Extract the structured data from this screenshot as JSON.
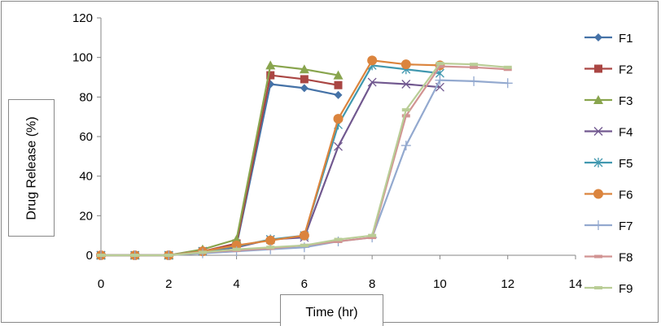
{
  "chart_data": {
    "type": "line",
    "xlabel": "Time (hr)",
    "ylabel": "Drug Release (%)",
    "xlim": [
      0,
      14
    ],
    "ylim": [
      0,
      120
    ],
    "xticks": [
      0,
      2,
      4,
      6,
      8,
      10,
      12,
      14
    ],
    "yticks": [
      0,
      20,
      40,
      60,
      80,
      100,
      120
    ],
    "grid": false,
    "legend": "right",
    "series": [
      {
        "name": "F1",
        "color": "#4572a7",
        "marker": "diamond",
        "x": [
          0,
          1,
          2,
          3,
          4,
          5,
          6,
          7
        ],
        "y": [
          0,
          0,
          0,
          2,
          5,
          86.5,
          84.5,
          81
        ]
      },
      {
        "name": "F2",
        "color": "#aa4643",
        "marker": "square",
        "x": [
          0,
          1,
          2,
          3,
          4,
          5,
          6,
          7
        ],
        "y": [
          0,
          0,
          0,
          2,
          6,
          91,
          89,
          86
        ]
      },
      {
        "name": "F3",
        "color": "#89a54e",
        "marker": "triangle",
        "x": [
          0,
          1,
          2,
          3,
          4,
          5,
          6,
          7
        ],
        "y": [
          0,
          0,
          0,
          3,
          8,
          96,
          94,
          91
        ]
      },
      {
        "name": "F4",
        "color": "#71588f",
        "marker": "x",
        "x": [
          0,
          1,
          2,
          3,
          4,
          5,
          6,
          7,
          8,
          9,
          10
        ],
        "y": [
          0,
          0,
          0,
          2,
          4,
          8,
          9,
          55,
          87.5,
          86.5,
          85
        ]
      },
      {
        "name": "F5",
        "color": "#4198af",
        "marker": "star",
        "x": [
          0,
          1,
          2,
          3,
          4,
          5,
          6,
          7,
          8,
          9,
          10
        ],
        "y": [
          0,
          0,
          0,
          2,
          4.5,
          8,
          10,
          66,
          96,
          94,
          92
        ]
      },
      {
        "name": "F6",
        "color": "#db843d",
        "marker": "circle",
        "x": [
          0,
          1,
          2,
          3,
          4,
          5,
          6,
          7,
          8,
          9,
          10
        ],
        "y": [
          0,
          0,
          0,
          2,
          5,
          7.5,
          10,
          69,
          98.5,
          96.5,
          96
        ]
      },
      {
        "name": "F7",
        "color": "#93a9cf",
        "marker": "plus",
        "x": [
          0,
          1,
          2,
          3,
          4,
          5,
          6,
          7,
          8,
          9,
          10,
          11,
          12
        ],
        "y": [
          0,
          0,
          0,
          1,
          2,
          3,
          4,
          7,
          9,
          55.5,
          88.5,
          88,
          87
        ]
      },
      {
        "name": "F8",
        "color": "#d19392",
        "marker": "dash",
        "x": [
          0,
          1,
          2,
          3,
          4,
          5,
          6,
          7,
          8,
          9,
          10,
          11,
          12
        ],
        "y": [
          0,
          0,
          0,
          1.5,
          2.5,
          3.5,
          5,
          7,
          9,
          70.5,
          95.5,
          95,
          94
        ]
      },
      {
        "name": "F9",
        "color": "#b9cd96",
        "marker": "dash",
        "x": [
          0,
          1,
          2,
          3,
          4,
          5,
          6,
          7,
          8,
          9,
          10,
          11,
          12
        ],
        "y": [
          0,
          0,
          0,
          1.5,
          3,
          4,
          5,
          8,
          10,
          73.5,
          97,
          96.5,
          95
        ]
      }
    ]
  }
}
